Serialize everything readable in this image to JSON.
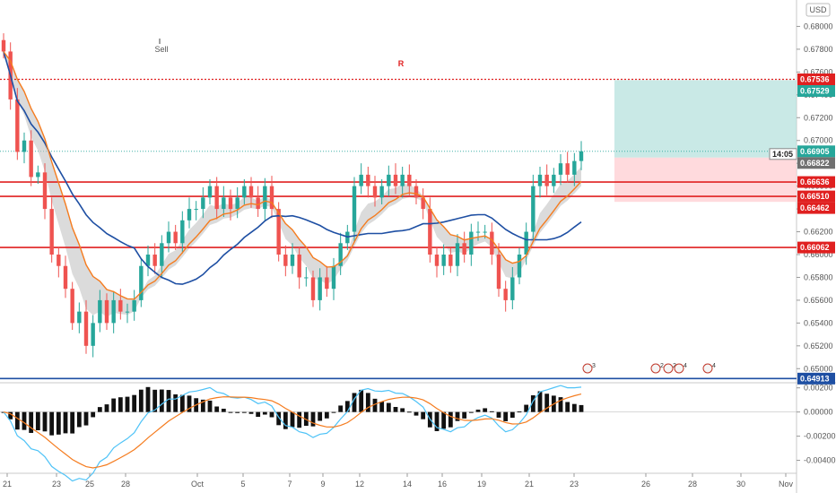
{
  "chart_data": {
    "type": "candlestick",
    "currency": "USD",
    "y_range": [
      0.649,
      0.682
    ],
    "y_ticks": [
      "0.68000",
      "0.67800",
      "0.67600",
      "0.67400",
      "0.67200",
      "0.67000",
      "0.66800",
      "0.66600",
      "0.66400",
      "0.66200",
      "0.66000",
      "0.65800",
      "0.65600",
      "0.65400",
      "0.65200",
      "0.65000"
    ],
    "x_labels": [
      "21",
      "23",
      "25",
      "28",
      "Oct",
      "5",
      "7",
      "9",
      "12",
      "14",
      "16",
      "19",
      "21",
      "23",
      "26",
      "28",
      "30",
      "Nov"
    ],
    "sell_label": "Sell",
    "r_label": "R",
    "horizontal_levels": [
      {
        "value": 0.67536,
        "label": "0.67536",
        "style": "dotted",
        "color": "#e02020"
      },
      {
        "value": 0.66636,
        "label": "0.66636",
        "style": "solid",
        "color": "#e02020"
      },
      {
        "value": 0.6651,
        "label": "0.66510",
        "style": "solid",
        "color": "#e02020"
      },
      {
        "value": 0.66062,
        "label": "0.66062",
        "style": "solid",
        "color": "#e02020"
      },
      {
        "value": 0.64913,
        "label": "0.64913",
        "style": "solid",
        "color": "#1e4fa3"
      }
    ],
    "price_badges": [
      {
        "value": 0.67536,
        "label": "0.67536",
        "color": "#e02020"
      },
      {
        "value": 0.67529,
        "label": "0.67529",
        "color": "#26a69a"
      },
      {
        "value": 0.66905,
        "label": "0.66905",
        "color": "#26a69a"
      },
      {
        "value": 0.66822,
        "label": "0.66822",
        "color": "#707070"
      },
      {
        "value": 0.66636,
        "label": "0.66636",
        "color": "#e02020"
      },
      {
        "value": 0.6651,
        "label": "0.66510",
        "color": "#e02020"
      },
      {
        "value": 0.66462,
        "label": "0.66462",
        "color": "#e02020"
      },
      {
        "value": 0.66062,
        "label": "0.66062",
        "color": "#e02020"
      },
      {
        "value": 0.64913,
        "label": "0.64913",
        "color": "#1e4fa3"
      }
    ],
    "countdown": {
      "label": "14:05",
      "value": 0.6685
    },
    "position_box": {
      "entry": 0.6685,
      "target": 0.67529,
      "stop": 0.66462
    },
    "events": [
      {
        "label": "3"
      },
      {
        "label": "2"
      },
      {
        "label": "2"
      },
      {
        "label": "4"
      },
      {
        "label": "4"
      }
    ],
    "oscillator": {
      "y_range": [
        -0.005,
        0.0022
      ],
      "y_ticks": [
        "0.00200",
        "0.00000",
        "-0.00200",
        "-0.00400"
      ]
    },
    "series": [
      {
        "name": "candles",
        "o": [
          0.6788,
          0.6778,
          0.6736,
          0.669,
          0.67,
          0.6668,
          0.6672,
          0.664,
          0.66,
          0.659,
          0.657,
          0.654,
          0.655,
          0.652,
          0.654,
          0.656,
          0.654,
          0.656,
          0.655,
          0.655,
          0.656,
          0.659,
          0.66,
          0.659,
          0.661,
          0.662,
          0.661,
          0.663,
          0.664,
          0.664,
          0.665,
          0.666,
          0.664,
          0.665,
          0.664,
          0.665,
          0.666,
          0.665,
          0.664,
          0.666,
          0.664,
          0.66,
          0.659,
          0.66,
          0.658,
          0.658,
          0.656,
          0.658,
          0.657,
          0.659,
          0.661,
          0.662,
          0.666,
          0.667,
          0.666,
          0.665,
          0.666,
          0.667,
          0.666,
          0.667,
          0.666,
          0.665,
          0.664,
          0.66,
          0.659,
          0.66,
          0.659,
          0.661,
          0.66,
          0.662,
          0.662,
          0.662,
          0.66,
          0.657,
          0.656,
          0.658,
          0.66,
          0.662,
          0.666,
          0.667,
          0.666,
          0.667,
          0.668,
          0.667,
          0.6682
        ],
        "c": [
          0.6778,
          0.6736,
          0.669,
          0.67,
          0.6668,
          0.6672,
          0.664,
          0.66,
          0.659,
          0.657,
          0.654,
          0.655,
          0.652,
          0.654,
          0.656,
          0.654,
          0.656,
          0.655,
          0.655,
          0.656,
          0.659,
          0.66,
          0.659,
          0.661,
          0.662,
          0.661,
          0.663,
          0.664,
          0.664,
          0.665,
          0.666,
          0.664,
          0.665,
          0.664,
          0.665,
          0.666,
          0.665,
          0.664,
          0.666,
          0.664,
          0.66,
          0.659,
          0.66,
          0.658,
          0.658,
          0.656,
          0.658,
          0.657,
          0.659,
          0.661,
          0.662,
          0.666,
          0.667,
          0.666,
          0.665,
          0.666,
          0.667,
          0.666,
          0.667,
          0.666,
          0.665,
          0.664,
          0.66,
          0.659,
          0.66,
          0.659,
          0.661,
          0.66,
          0.662,
          0.662,
          0.662,
          0.66,
          0.657,
          0.656,
          0.658,
          0.66,
          0.662,
          0.666,
          0.667,
          0.666,
          0.667,
          0.668,
          0.667,
          0.6682,
          0.66905
        ]
      }
    ]
  }
}
